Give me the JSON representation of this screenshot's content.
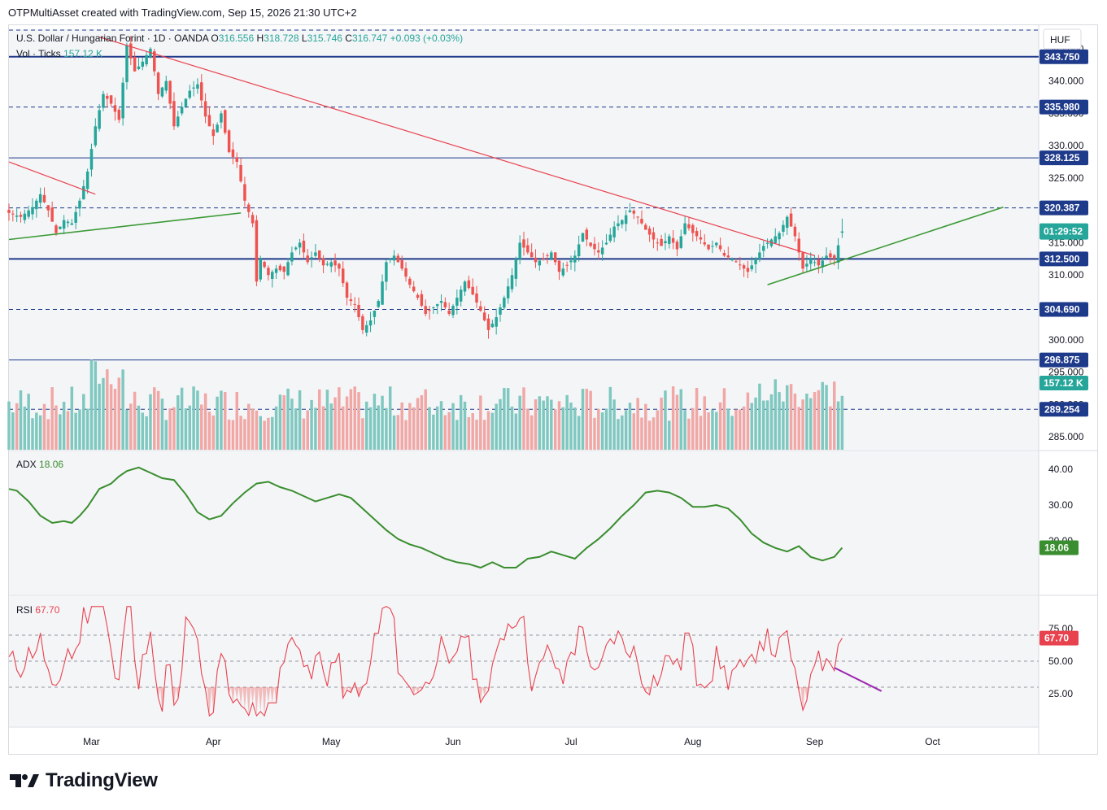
{
  "header": {
    "attribution": "OTPMultiAsset created with TradingView.com, Sep 15, 2026 21:30 UTC+2"
  },
  "footer": {
    "brand": "TradingView"
  },
  "chart_data": {
    "type": "candlestick",
    "symbol": {
      "name": "U.S. Dollar / Hungarian Forint · 1D · OANDA",
      "o_label": "O",
      "o_value": "316.556",
      "h_label": "H",
      "h_value": "318.728",
      "l_label": "L",
      "l_value": "315.746",
      "c_label": "C",
      "c_value": "316.747",
      "change": "+0.093 (+0.03%)"
    },
    "currency": "HUF",
    "price_ylim": [
      283,
      348
    ],
    "price_ticks": [
      "285.000",
      "290.000",
      "295.000",
      "300.000",
      "305.000",
      "310.000",
      "315.000",
      "320.000",
      "325.000",
      "330.000",
      "335.000",
      "340.000",
      "345.000"
    ],
    "x_month_labels": [
      {
        "label": "Mar",
        "day": 21
      },
      {
        "label": "Apr",
        "day": 52
      },
      {
        "label": "May",
        "day": 82
      },
      {
        "label": "Jun",
        "day": 113
      },
      {
        "label": "Jul",
        "day": 143
      },
      {
        "label": "Aug",
        "day": 174
      },
      {
        "label": "Sep",
        "day": 205
      },
      {
        "label": "Oct",
        "day": 235
      }
    ],
    "x_day_range": [
      0,
      262
    ],
    "price_waypoints": [
      [
        0,
        319.6
      ],
      [
        3,
        319.0
      ],
      [
        6,
        320.5
      ],
      [
        8,
        322.5
      ],
      [
        10,
        320.0
      ],
      [
        12,
        316.5
      ],
      [
        14,
        318.5
      ],
      [
        16,
        318.0
      ],
      [
        18,
        321.5
      ],
      [
        20,
        326.0
      ],
      [
        22,
        333.0
      ],
      [
        24,
        338.0
      ],
      [
        26,
        336.5
      ],
      [
        28,
        334.0
      ],
      [
        30,
        345.5
      ],
      [
        32,
        341.5
      ],
      [
        34,
        343.0
      ],
      [
        36,
        345.0
      ],
      [
        38,
        338.0
      ],
      [
        40,
        340.0
      ],
      [
        42,
        333.0
      ],
      [
        44,
        336.0
      ],
      [
        46,
        338.5
      ],
      [
        48,
        339.5
      ],
      [
        50,
        334.5
      ],
      [
        52,
        331.5
      ],
      [
        54,
        335.0
      ],
      [
        56,
        329.0
      ],
      [
        58,
        327.5
      ],
      [
        60,
        321.5
      ],
      [
        62,
        318.0
      ],
      [
        63,
        309.0
      ],
      [
        64,
        312.5
      ],
      [
        66,
        310.0
      ],
      [
        68,
        311.0
      ],
      [
        70,
        310.5
      ],
      [
        72,
        313.5
      ],
      [
        74,
        315.0
      ],
      [
        76,
        312.0
      ],
      [
        78,
        313.5
      ],
      [
        80,
        311.5
      ],
      [
        82,
        312.0
      ],
      [
        84,
        311.0
      ],
      [
        86,
        306.5
      ],
      [
        88,
        305.5
      ],
      [
        90,
        301.5
      ],
      [
        92,
        303.0
      ],
      [
        94,
        306.0
      ],
      [
        96,
        312.0
      ],
      [
        98,
        313.0
      ],
      [
        100,
        311.0
      ],
      [
        102,
        308.5
      ],
      [
        104,
        306.5
      ],
      [
        106,
        304.0
      ],
      [
        108,
        305.0
      ],
      [
        110,
        306.0
      ],
      [
        112,
        304.0
      ],
      [
        114,
        306.5
      ],
      [
        116,
        309.0
      ],
      [
        118,
        307.0
      ],
      [
        120,
        304.5
      ],
      [
        122,
        301.5
      ],
      [
        124,
        303.5
      ],
      [
        126,
        306.5
      ],
      [
        128,
        310.0
      ],
      [
        130,
        315.0
      ],
      [
        132,
        313.5
      ],
      [
        134,
        312.0
      ],
      [
        136,
        312.5
      ],
      [
        138,
        313.5
      ],
      [
        140,
        310.5
      ],
      [
        142,
        311.5
      ],
      [
        144,
        313.0
      ],
      [
        146,
        316.5
      ],
      [
        148,
        314.5
      ],
      [
        150,
        313.5
      ],
      [
        152,
        315.0
      ],
      [
        154,
        317.5
      ],
      [
        156,
        318.5
      ],
      [
        158,
        320.0
      ],
      [
        160,
        319.0
      ],
      [
        162,
        317.0
      ],
      [
        164,
        315.5
      ],
      [
        166,
        314.5
      ],
      [
        168,
        316.0
      ],
      [
        170,
        314.0
      ],
      [
        172,
        318.0
      ],
      [
        174,
        316.5
      ],
      [
        176,
        315.5
      ],
      [
        178,
        314.0
      ],
      [
        180,
        315.0
      ],
      [
        182,
        313.0
      ],
      [
        184,
        312.5
      ],
      [
        186,
        311.5
      ],
      [
        188,
        310.5
      ],
      [
        190,
        312.5
      ],
      [
        192,
        314.5
      ],
      [
        194,
        315.5
      ],
      [
        196,
        316.5
      ],
      [
        198,
        319.0
      ],
      [
        200,
        316.0
      ],
      [
        202,
        311.0
      ],
      [
        204,
        312.5
      ],
      [
        206,
        311.5
      ],
      [
        208,
        313.0
      ],
      [
        210,
        312.5
      ],
      [
        212,
        316.7
      ]
    ],
    "last_close_day": 212,
    "horizontal_levels": [
      {
        "value": "343.750",
        "style": "solid-bold"
      },
      {
        "value": "335.980",
        "style": "dashed"
      },
      {
        "value": "328.125",
        "style": "solid-thin"
      },
      {
        "value": "320.387",
        "style": "dashed"
      },
      {
        "value": "312.500",
        "style": "solid-bold"
      },
      {
        "value": "304.690",
        "style": "dashed"
      },
      {
        "value": "296.875",
        "style": "solid-thin"
      },
      {
        "value": "289.254",
        "style": "dashed"
      }
    ],
    "trendlines": [
      {
        "color": "#e8424f",
        "from": [
          0,
          327.5
        ],
        "to": [
          22,
          322.5
        ]
      },
      {
        "color": "#e8424f",
        "from": [
          23,
          346.8
        ],
        "to": [
          205,
          313.0
        ]
      },
      {
        "color": "#3c9a36",
        "from": [
          0,
          315.5
        ],
        "to": [
          59,
          319.6
        ]
      },
      {
        "color": "#3c9a36",
        "from": [
          193,
          308.5
        ],
        "to": [
          253,
          320.5
        ]
      }
    ],
    "last_price_tag": "316.747",
    "countdown": "01:29:52",
    "volume": {
      "label": "Vol · Ticks",
      "value": "157.12 K",
      "max_k": 190
    },
    "adx": {
      "label": "ADX",
      "value": "18.06",
      "ylim": [
        5,
        45
      ],
      "ticks": [
        "40.00",
        "30.00",
        "20.00"
      ],
      "waypoints": [
        [
          0,
          34.5
        ],
        [
          2,
          34
        ],
        [
          5,
          31
        ],
        [
          8,
          27
        ],
        [
          11,
          25
        ],
        [
          14,
          25.5
        ],
        [
          16,
          25
        ],
        [
          18,
          27
        ],
        [
          20,
          29.5
        ],
        [
          23,
          34.5
        ],
        [
          26,
          36
        ],
        [
          28,
          38
        ],
        [
          30,
          39.5
        ],
        [
          33,
          40.5
        ],
        [
          36,
          39
        ],
        [
          39,
          37.5
        ],
        [
          42,
          37
        ],
        [
          45,
          33
        ],
        [
          48,
          28
        ],
        [
          51,
          26
        ],
        [
          54,
          27
        ],
        [
          57,
          30.5
        ],
        [
          60,
          33.5
        ],
        [
          63,
          36
        ],
        [
          66,
          36.5
        ],
        [
          69,
          35
        ],
        [
          72,
          34
        ],
        [
          75,
          32.5
        ],
        [
          78,
          31
        ],
        [
          81,
          32
        ],
        [
          84,
          33
        ],
        [
          87,
          32
        ],
        [
          90,
          29
        ],
        [
          93,
          26
        ],
        [
          96,
          23
        ],
        [
          99,
          20.5
        ],
        [
          102,
          19
        ],
        [
          105,
          18
        ],
        [
          108,
          16.5
        ],
        [
          111,
          15
        ],
        [
          114,
          14
        ],
        [
          117,
          13.5
        ],
        [
          120,
          12.5
        ],
        [
          123,
          14
        ],
        [
          126,
          12.5
        ],
        [
          129,
          12.5
        ],
        [
          132,
          15
        ],
        [
          135,
          15.5
        ],
        [
          138,
          17
        ],
        [
          141,
          16
        ],
        [
          144,
          15
        ],
        [
          147,
          18
        ],
        [
          150,
          20.5
        ],
        [
          153,
          23.5
        ],
        [
          156,
          27
        ],
        [
          159,
          30
        ],
        [
          162,
          33.5
        ],
        [
          165,
          34
        ],
        [
          168,
          33.5
        ],
        [
          171,
          32
        ],
        [
          174,
          29.5
        ],
        [
          177,
          29.5
        ],
        [
          180,
          30
        ],
        [
          183,
          29
        ],
        [
          186,
          26
        ],
        [
          189,
          22
        ],
        [
          192,
          19.5
        ],
        [
          195,
          18
        ],
        [
          198,
          17
        ],
        [
          201,
          18.5
        ],
        [
          204,
          15.5
        ],
        [
          207,
          14.5
        ],
        [
          210,
          15.5
        ],
        [
          212,
          18.06
        ]
      ]
    },
    "rsi": {
      "label": "RSI",
      "value": "67.70",
      "ylim": [
        0,
        100
      ],
      "ticks": [
        "75.00",
        "50.00",
        "25.00"
      ],
      "bands": [
        70,
        30
      ],
      "projection": {
        "from": [
          210,
          45
        ],
        "to": [
          222,
          27
        ]
      }
    }
  },
  "colors": {
    "bull": "#26a69a",
    "bear": "#ef5350",
    "vol_bull": "#7fc8c0",
    "vol_bear": "#f0a7a5",
    "level": "#1e3a8a",
    "adx": "#3a8e2f",
    "rsi": "#e8424f",
    "projection": "#9c27b0"
  }
}
